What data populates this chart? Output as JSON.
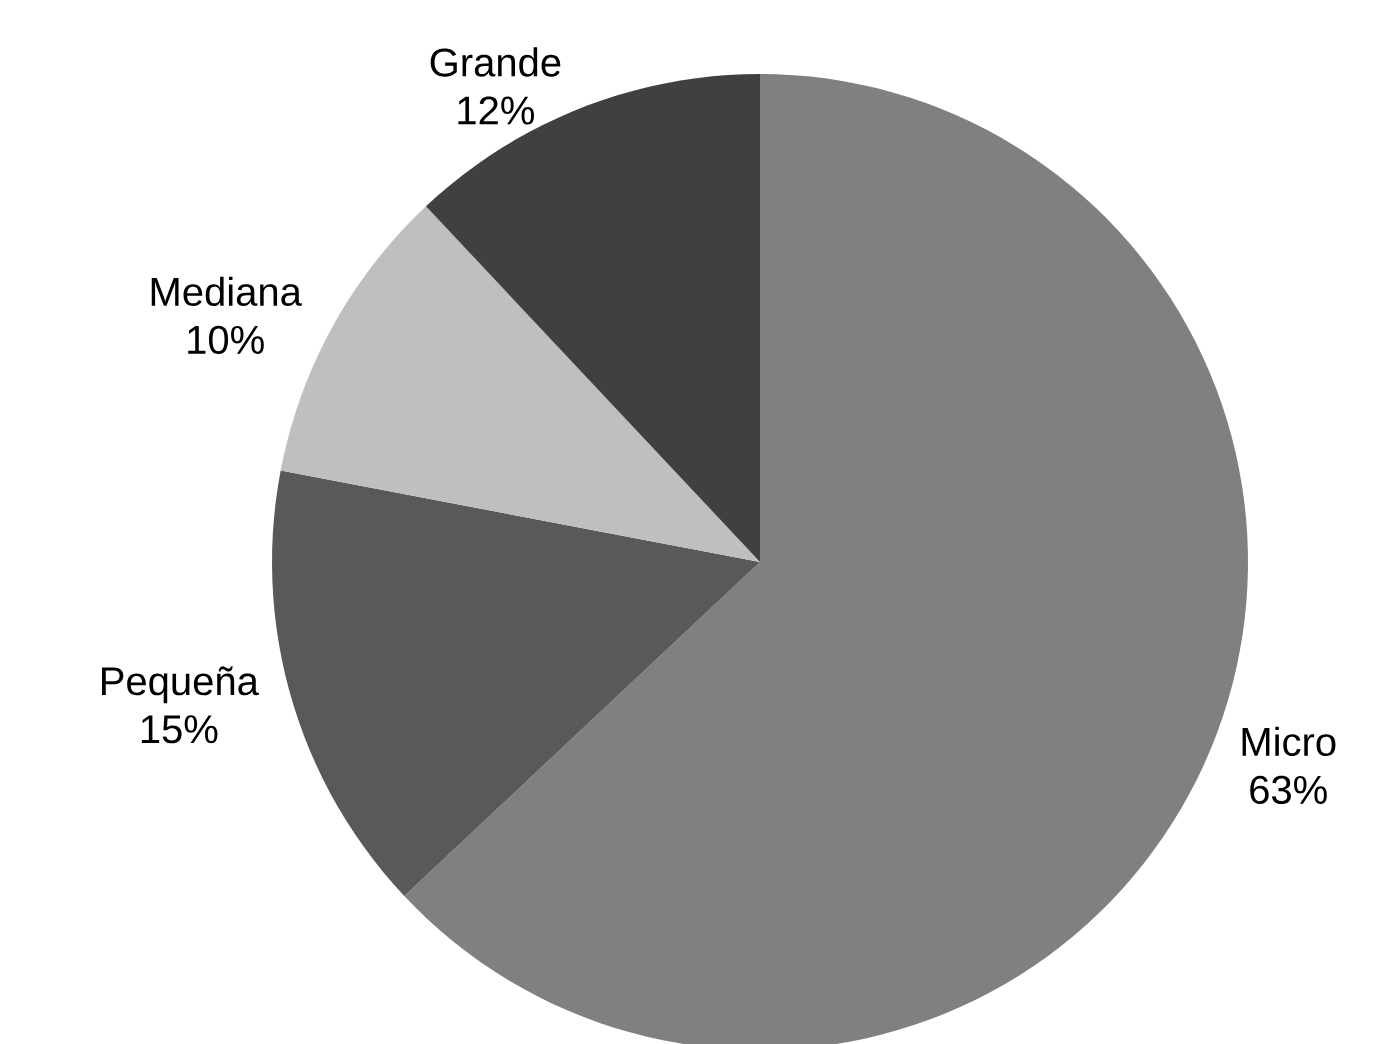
{
  "chart_data": {
    "type": "pie",
    "categories": [
      "Micro",
      "Pequeña",
      "Mediana",
      "Grande"
    ],
    "values": [
      63,
      15,
      10,
      12
    ],
    "value_labels": [
      "63%",
      "15%",
      "10%",
      "12%"
    ],
    "colors": [
      "#808080",
      "#595959",
      "#bfbfbf",
      "#404040"
    ]
  }
}
